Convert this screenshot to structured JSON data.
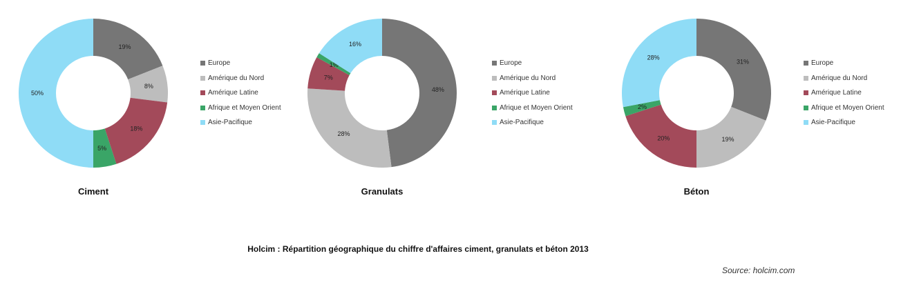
{
  "chart_data": [
    {
      "type": "pie",
      "donut": true,
      "title": "Ciment",
      "categories": [
        "Europe",
        "Amérique du Nord",
        "Amérique Latine",
        "Afrique et Moyen Orient",
        "Asie-Pacifique"
      ],
      "values": [
        19,
        8,
        18,
        5,
        50
      ],
      "labels": [
        "19%",
        "8%",
        "18%",
        "5%",
        "50%"
      ],
      "legend": "right"
    },
    {
      "type": "pie",
      "donut": true,
      "title": "Granulats",
      "categories": [
        "Europe",
        "Amérique du Nord",
        "Amérique Latine",
        "Afrique et Moyen Orient",
        "Asie-Pacifique"
      ],
      "values": [
        48,
        28,
        7,
        1,
        16
      ],
      "labels": [
        "48%",
        "28%",
        "7%",
        "1%",
        "16%"
      ],
      "legend": "right"
    },
    {
      "type": "pie",
      "donut": true,
      "title": "Béton",
      "categories": [
        "Europe",
        "Amérique du Nord",
        "Amérique Latine",
        "Afrique et Moyen Orient",
        "Asie-Pacifique"
      ],
      "values": [
        31,
        19,
        20,
        2,
        28
      ],
      "labels": [
        "31%",
        "19%",
        "20%",
        "2%",
        "28%"
      ],
      "legend": "right"
    }
  ],
  "colors": [
    "#767676",
    "#bdbdbd",
    "#a34a5a",
    "#3aa567",
    "#8fdcf6"
  ],
  "main_title": "Holcim : Répartition géographique du chiffre d'affaires ciment, granulats et béton 2013",
  "source": "Source: holcim.com"
}
